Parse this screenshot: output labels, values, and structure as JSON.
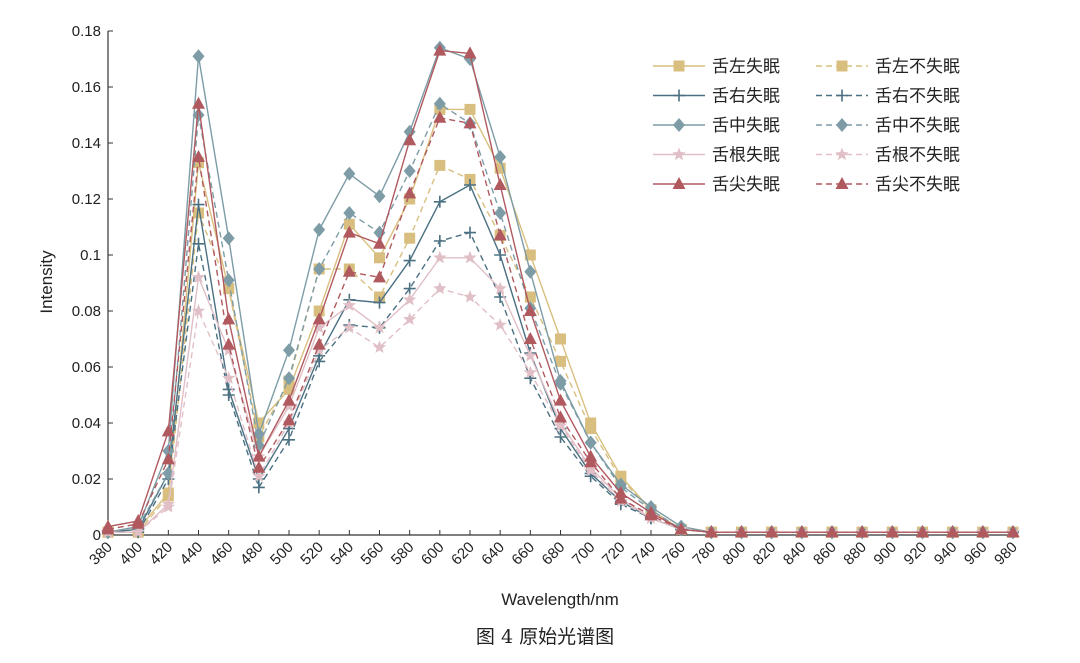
{
  "figure": {
    "caption": "图 4  原始光谱图"
  },
  "chart_data": {
    "type": "line",
    "xlabel": "Wavelength/nm",
    "ylabel": "Intensity",
    "xlim": [
      380,
      980
    ],
    "ylim": [
      0,
      0.18
    ],
    "xticks": [
      380,
      400,
      420,
      440,
      460,
      480,
      500,
      520,
      540,
      560,
      580,
      600,
      620,
      640,
      660,
      680,
      700,
      720,
      740,
      760,
      780,
      800,
      820,
      840,
      860,
      880,
      900,
      920,
      940,
      960,
      980
    ],
    "yticks": [
      0,
      0.02,
      0.04,
      0.06,
      0.08,
      0.1,
      0.12,
      0.14,
      0.16,
      0.18
    ],
    "ytick_labels": [
      "0",
      "0.02",
      "0.04",
      "0.06",
      "0.08",
      "0.1",
      "0.12",
      "0.14",
      "0.16",
      "0.18"
    ],
    "grid": false,
    "legend_position": "top-right",
    "x": [
      380,
      400,
      420,
      440,
      460,
      480,
      500,
      520,
      540,
      560,
      580,
      600,
      620,
      640,
      660,
      680,
      700,
      720,
      740,
      760,
      780,
      800,
      820,
      840,
      860,
      880,
      900,
      920,
      940,
      960,
      980
    ],
    "series": [
      {
        "name": "舌左失眠",
        "color": "#d9bf7f",
        "dash": false,
        "marker": "square",
        "values": [
          0.001,
          0.002,
          0.015,
          0.133,
          0.088,
          0.04,
          0.052,
          0.08,
          0.111,
          0.099,
          0.12,
          0.152,
          0.152,
          0.131,
          0.1,
          0.07,
          0.04,
          0.021,
          0.009,
          0.002,
          0.001,
          0.001,
          0.001,
          0.001,
          0.001,
          0.001,
          0.001,
          0.001,
          0.001,
          0.001,
          0.001
        ]
      },
      {
        "name": "舌左不失眠",
        "color": "#d9bf7f",
        "dash": true,
        "marker": "square",
        "values": [
          0.001,
          0.001,
          0.014,
          0.115,
          0.088,
          0.035,
          0.055,
          0.095,
          0.095,
          0.085,
          0.106,
          0.132,
          0.127,
          0.107,
          0.085,
          0.062,
          0.038,
          0.02,
          0.009,
          0.002,
          0.001,
          0.001,
          0.001,
          0.001,
          0.001,
          0.001,
          0.001,
          0.001,
          0.001,
          0.001,
          0.001
        ]
      },
      {
        "name": "舌右失眠",
        "color": "#4a7082",
        "dash": false,
        "marker": "plus",
        "values": [
          0.001,
          0.002,
          0.022,
          0.118,
          0.052,
          0.02,
          0.038,
          0.064,
          0.084,
          0.083,
          0.098,
          0.119,
          0.125,
          0.1,
          0.065,
          0.038,
          0.022,
          0.012,
          0.006,
          0.002,
          0.001,
          0.001,
          0.001,
          0.001,
          0.001,
          0.001,
          0.001,
          0.001,
          0.001,
          0.001,
          0.001
        ]
      },
      {
        "name": "舌右不失眠",
        "color": "#4a7082",
        "dash": true,
        "marker": "plus",
        "values": [
          0.001,
          0.001,
          0.02,
          0.104,
          0.05,
          0.017,
          0.034,
          0.062,
          0.075,
          0.074,
          0.088,
          0.105,
          0.108,
          0.085,
          0.056,
          0.035,
          0.021,
          0.011,
          0.006,
          0.002,
          0.001,
          0.001,
          0.001,
          0.001,
          0.001,
          0.001,
          0.001,
          0.001,
          0.001,
          0.001,
          0.001
        ]
      },
      {
        "name": "舌中失眠",
        "color": "#7d9ca6",
        "dash": false,
        "marker": "diamond",
        "values": [
          0.001,
          0.003,
          0.03,
          0.171,
          0.106,
          0.036,
          0.066,
          0.109,
          0.129,
          0.121,
          0.144,
          0.174,
          0.17,
          0.135,
          0.094,
          0.055,
          0.033,
          0.018,
          0.01,
          0.003,
          0.001,
          0.001,
          0.001,
          0.001,
          0.001,
          0.001,
          0.001,
          0.001,
          0.001,
          0.001,
          0.001
        ]
      },
      {
        "name": "舌中不失眠",
        "color": "#7d9ca6",
        "dash": true,
        "marker": "diamond",
        "values": [
          0.001,
          0.003,
          0.022,
          0.15,
          0.091,
          0.032,
          0.056,
          0.095,
          0.115,
          0.108,
          0.13,
          0.154,
          0.147,
          0.115,
          0.081,
          0.054,
          0.033,
          0.017,
          0.009,
          0.002,
          0.001,
          0.001,
          0.001,
          0.001,
          0.001,
          0.001,
          0.001,
          0.001,
          0.001,
          0.001,
          0.001
        ]
      },
      {
        "name": "舌根失眠",
        "color": "#e0bfc6",
        "dash": false,
        "marker": "star",
        "values": [
          0.001,
          0.001,
          0.011,
          0.092,
          0.066,
          0.028,
          0.046,
          0.074,
          0.082,
          0.074,
          0.084,
          0.099,
          0.099,
          0.088,
          0.064,
          0.04,
          0.024,
          0.013,
          0.006,
          0.002,
          0.001,
          0.001,
          0.001,
          0.001,
          0.001,
          0.001,
          0.001,
          0.001,
          0.001,
          0.001,
          0.001
        ]
      },
      {
        "name": "舌根不失眠",
        "color": "#e0bfc6",
        "dash": true,
        "marker": "star",
        "values": [
          0.001,
          0.001,
          0.01,
          0.08,
          0.056,
          0.021,
          0.04,
          0.066,
          0.074,
          0.067,
          0.077,
          0.088,
          0.085,
          0.075,
          0.058,
          0.039,
          0.023,
          0.012,
          0.006,
          0.002,
          0.001,
          0.001,
          0.001,
          0.001,
          0.001,
          0.001,
          0.001,
          0.001,
          0.001,
          0.001,
          0.001
        ]
      },
      {
        "name": "舌尖失眠",
        "color": "#b05a60",
        "dash": false,
        "marker": "triangle",
        "values": [
          0.003,
          0.005,
          0.037,
          0.154,
          0.077,
          0.028,
          0.048,
          0.077,
          0.108,
          0.104,
          0.141,
          0.173,
          0.172,
          0.125,
          0.08,
          0.048,
          0.028,
          0.015,
          0.008,
          0.002,
          0.001,
          0.001,
          0.001,
          0.001,
          0.001,
          0.001,
          0.001,
          0.001,
          0.001,
          0.001,
          0.001
        ]
      },
      {
        "name": "舌尖不失眠",
        "color": "#b05a60",
        "dash": true,
        "marker": "triangle",
        "values": [
          0.002,
          0.004,
          0.027,
          0.135,
          0.068,
          0.024,
          0.041,
          0.068,
          0.094,
          0.092,
          0.122,
          0.149,
          0.147,
          0.107,
          0.07,
          0.042,
          0.026,
          0.013,
          0.007,
          0.002,
          0.001,
          0.001,
          0.001,
          0.001,
          0.001,
          0.001,
          0.001,
          0.001,
          0.001,
          0.001,
          0.001
        ]
      }
    ]
  }
}
